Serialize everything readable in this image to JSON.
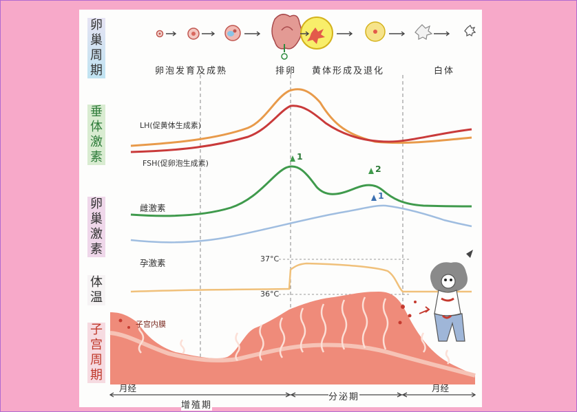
{
  "sections": {
    "ovarian_cycle": "卵巢周期",
    "pituitary_hormones": "垂体激素",
    "ovarian_hormones": "卵巢激素",
    "body_temp": "体温",
    "uterine_cycle": "子宫周期"
  },
  "phases": {
    "follicle": "卵泡发育及成熟",
    "ovulation": "排卵",
    "corpus_luteum": "黄体形成及退化",
    "albicans": "白体"
  },
  "hormones": {
    "lh": "LH(促黄体生成素)",
    "fsh": "FSH(促卵泡生成素)",
    "estrogen": "雌激素",
    "progesterone": "孕激素"
  },
  "markers": {
    "peak1": "1",
    "peak2": "2",
    "prog_peak": "1"
  },
  "temps": {
    "high": "37°C",
    "low": "36°C"
  },
  "uterus": {
    "endometrium": "子宫内膜",
    "menses_start": "月经",
    "proliferative": "增殖期",
    "secretory": "分泌期",
    "menses_end": "月经"
  },
  "colors": {
    "lh": "#e89a4a",
    "fsh": "#c93a3a",
    "estrogen": "#3f9a4c",
    "progesterone": "#9fbde0",
    "temperature": "#f0c07a",
    "endometrium": "#e96a5a"
  }
}
